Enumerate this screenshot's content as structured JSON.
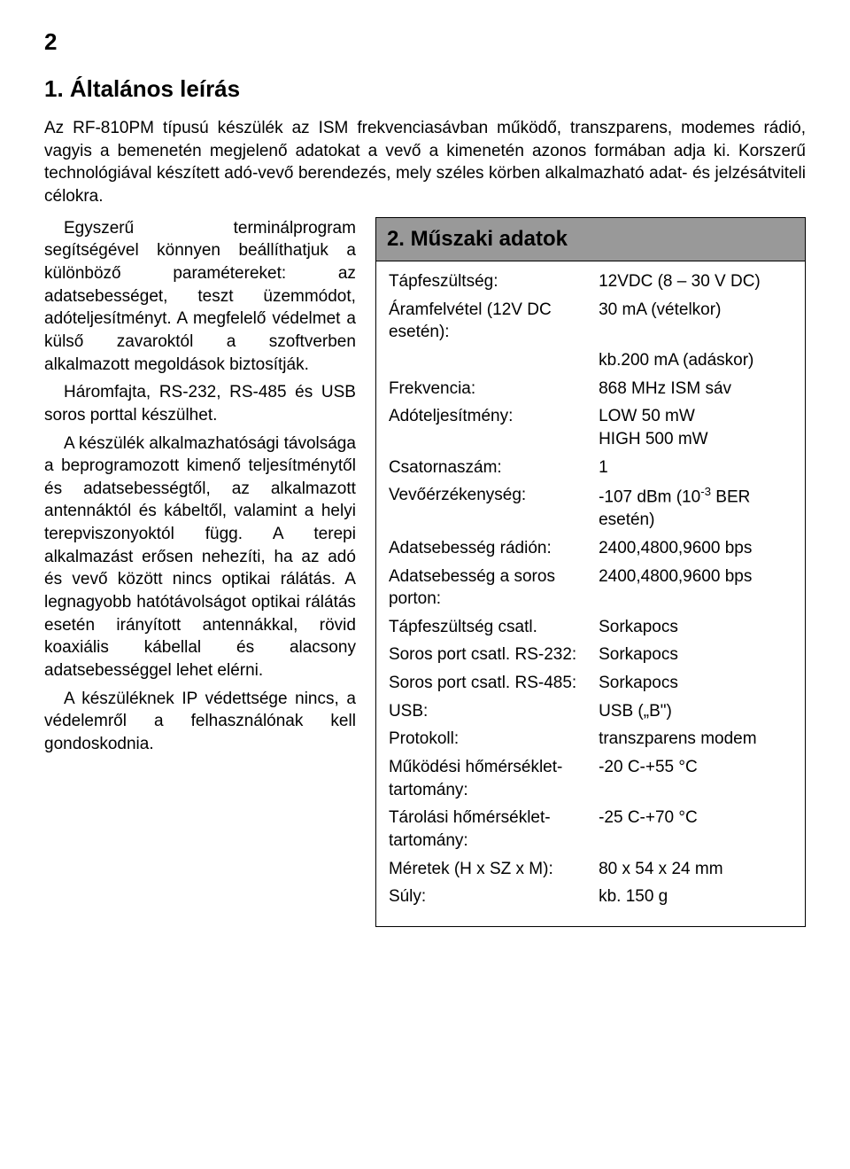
{
  "page_number": "2",
  "sections": {
    "s1": {
      "title": "1. Általános leírás",
      "intro": "Az RF-810PM típusú készülék az ISM frekvenciasávban működő, transzparens, modemes rádió, vagyis a bemenetén megjelenő adatokat a vevő a kimenetén azonos formában adja ki. Korszerű technológiával készített adó-vevő berendezés, mely széles körben alkalmazható adat- és jelzésátviteli célokra.",
      "paragraphs": [
        "Egyszerű terminálprogram segítségével könnyen beállíthatjuk a különböző paramétereket: az adatsebességet, teszt üzemmódot, adóteljesítményt. A megfelelő védelmet a külső zavaroktól a szoftverben alkalmazott megoldások biztosítják.",
        "Háromfajta, RS-232, RS-485 és USB soros porttal készülhet.",
        "A készülék alkalmazhatósági távolsága a beprogramozott kimenő teljesítménytől és adatsebességtől, az alkalmazott antennáktól és kábeltől, valamint a helyi terepviszonyoktól függ. A terepi alkalmazást erősen nehezíti, ha az adó és vevő között nincs optikai rálátás. A legnagyobb hatótávolságot optikai rálátás esetén irányított antennákkal, rövid koaxiális kábellal és alacsony adatsebességgel lehet elérni.",
        "A készüléknek IP védettsége nincs, a védelemről a felhasználónak kell gondoskodnia."
      ]
    },
    "s2": {
      "title": "2. Műszaki adatok",
      "header_bg": "#999999",
      "border_color": "#000000",
      "rows": [
        {
          "label": "Tápfeszültség:",
          "value": "12VDC (8 – 30 V DC)"
        },
        {
          "label": "Áramfelvétel (12V DC esetén):",
          "value": "30 mA (vételkor)"
        },
        {
          "label": "",
          "value": "kb.200 mA (adáskor)"
        },
        {
          "label": "Frekvencia:",
          "value": "868 MHz ISM sáv"
        },
        {
          "label": "Adóteljesítmény:",
          "value": "LOW 50 mW\nHIGH 500 mW"
        },
        {
          "label": "Csatornaszám:",
          "value": "1"
        },
        {
          "label": "Vevőérzékenység:",
          "value_html": "-107 dBm (10<sup>-3</sup> BER esetén)"
        },
        {
          "label": "Adatsebesség rádión:",
          "value": "2400,4800,9600 bps"
        },
        {
          "label": "Adatsebesség a soros porton:",
          "value": "2400,4800,9600 bps"
        },
        {
          "label": "Tápfeszültség csatl.",
          "value": "Sorkapocs"
        },
        {
          "label": "Soros port csatl. RS-232:",
          "value": "Sorkapocs"
        },
        {
          "label": "Soros port csatl. RS-485:",
          "value": "Sorkapocs"
        },
        {
          "label": "USB:",
          "value": "USB („B\")"
        },
        {
          "label": "Protokoll:",
          "value": "transzparens modem"
        },
        {
          "label": "Működési hőmérséklet-tartomány:",
          "value": "-20 C-+55 °C"
        },
        {
          "label": "Tárolási hőmérséklet-tartomány:",
          "value": "-25 C-+70 °C"
        },
        {
          "label": "Méretek (H x SZ x M):",
          "value": "80 x 54 x 24 mm"
        },
        {
          "label": "Súly:",
          "value": "kb. 150 g"
        }
      ]
    }
  }
}
